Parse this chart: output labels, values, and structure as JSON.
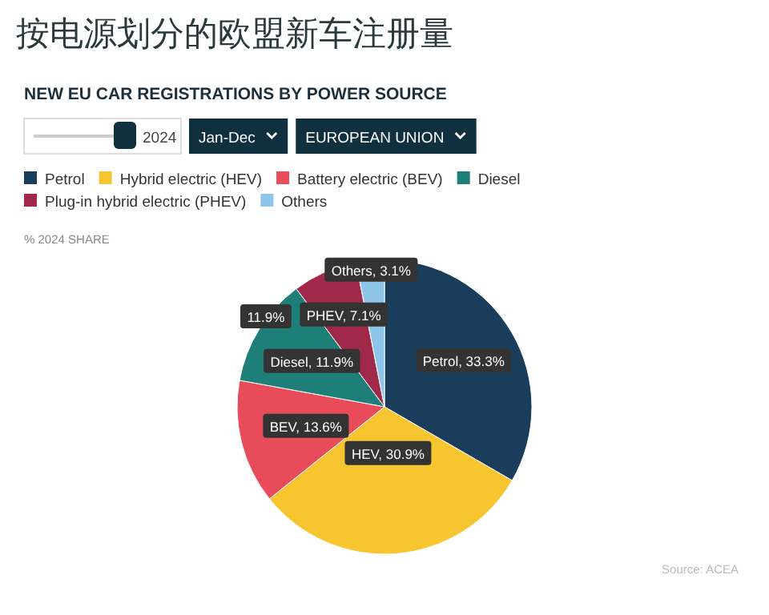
{
  "chart_data": {
    "type": "pie",
    "title": "按电源划分的欧盟新车注册量",
    "subtitle": "NEW EU CAR REGISTRATIONS BY POWER SOURCE",
    "categories": [
      "Petrol",
      "Hybrid electric (HEV)",
      "Battery electric (BEV)",
      "Diesel",
      "Plug-in hybrid electric (PHEV)",
      "Others"
    ],
    "values": [
      33.3,
      30.9,
      13.6,
      11.9,
      7.1,
      3.1
    ],
    "colors": [
      "#1b3d5c",
      "#f6c52f",
      "#e84c5a",
      "#1e7f78",
      "#a0294a",
      "#8ec6ea"
    ],
    "value_labels": [
      "Petrol, 33.3%",
      "HEV, 30.9%",
      "BEV, 13.6%",
      "Diesel, 11.9%",
      "PHEV, 7.1%",
      "Others, 3.1%"
    ],
    "legend": "top",
    "annotations": [
      "2024",
      "Jan-Dec",
      "EUROPEAN UNION",
      "% 2024 SHARE",
      "11.9%",
      "Source: ACEA"
    ]
  }
}
